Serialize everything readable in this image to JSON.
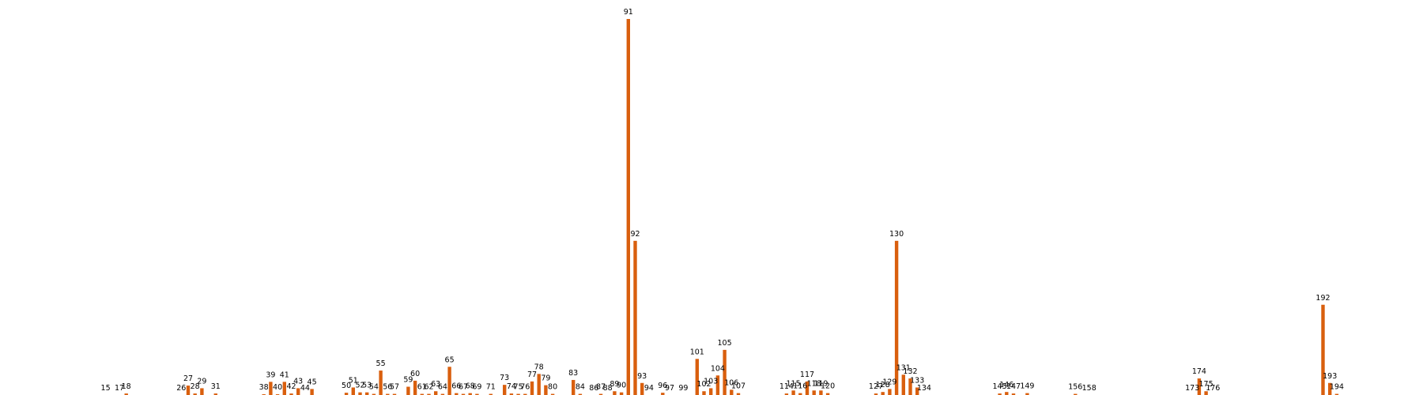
{
  "chart_data": {
    "type": "bar",
    "title": "",
    "xlabel": "",
    "ylabel": "",
    "ylim": [
      0,
      100
    ],
    "xlim": [
      0,
      200
    ],
    "grid": false,
    "bar_color": "#d95f0e",
    "points": [
      {
        "x": 15,
        "value": 0,
        "label": "15"
      },
      {
        "x": 17,
        "value": 0,
        "label": "17"
      },
      {
        "x": 18,
        "value": 0.4,
        "label": "18"
      },
      {
        "x": 26,
        "value": 0,
        "label": "26"
      },
      {
        "x": 27,
        "value": 2.5,
        "label": "27"
      },
      {
        "x": 28,
        "value": 0.4,
        "label": "28"
      },
      {
        "x": 29,
        "value": 1.8,
        "label": "29"
      },
      {
        "x": 31,
        "value": 0.4,
        "label": "31"
      },
      {
        "x": 38,
        "value": 0.2,
        "label": "38"
      },
      {
        "x": 39,
        "value": 3.5,
        "label": "39"
      },
      {
        "x": 40,
        "value": 0.2,
        "label": "40"
      },
      {
        "x": 41,
        "value": 3.5,
        "label": "41"
      },
      {
        "x": 42,
        "value": 0.4,
        "label": "42"
      },
      {
        "x": 43,
        "value": 1.8,
        "label": "43"
      },
      {
        "x": 44,
        "value": 0,
        "label": "44"
      },
      {
        "x": 45,
        "value": 1.6,
        "label": "45"
      },
      {
        "x": 50,
        "value": 0.6,
        "label": "50"
      },
      {
        "x": 51,
        "value": 2,
        "label": "51"
      },
      {
        "x": 52,
        "value": 0.7,
        "label": "52"
      },
      {
        "x": 53,
        "value": 0.7,
        "label": "53"
      },
      {
        "x": 54,
        "value": 0.3,
        "label": "54"
      },
      {
        "x": 55,
        "value": 6.5,
        "label": "55"
      },
      {
        "x": 56,
        "value": 0.3,
        "label": "56"
      },
      {
        "x": 57,
        "value": 0.3,
        "label": "57"
      },
      {
        "x": 59,
        "value": 2.2,
        "label": "59"
      },
      {
        "x": 60,
        "value": 3.8,
        "label": "60"
      },
      {
        "x": 61,
        "value": 0.3,
        "label": "61"
      },
      {
        "x": 62,
        "value": 0.3,
        "label": "62"
      },
      {
        "x": 63,
        "value": 1,
        "label": "63"
      },
      {
        "x": 64,
        "value": 0.3,
        "label": "64"
      },
      {
        "x": 65,
        "value": 7.5,
        "label": "65"
      },
      {
        "x": 66,
        "value": 0.5,
        "label": "66"
      },
      {
        "x": 67,
        "value": 0.3,
        "label": "67"
      },
      {
        "x": 68,
        "value": 0.5,
        "label": "68"
      },
      {
        "x": 69,
        "value": 0.3,
        "label": "69"
      },
      {
        "x": 71,
        "value": 0.3,
        "label": "71"
      },
      {
        "x": 73,
        "value": 2.7,
        "label": "73"
      },
      {
        "x": 74,
        "value": 0.4,
        "label": "74"
      },
      {
        "x": 75,
        "value": 0.3,
        "label": "75"
      },
      {
        "x": 76,
        "value": 0.3,
        "label": "76"
      },
      {
        "x": 77,
        "value": 3.6,
        "label": "77"
      },
      {
        "x": 78,
        "value": 5.6,
        "label": "78"
      },
      {
        "x": 79,
        "value": 2.6,
        "label": "79"
      },
      {
        "x": 80,
        "value": 0.3,
        "label": "80"
      },
      {
        "x": 83,
        "value": 4,
        "label": "83"
      },
      {
        "x": 84,
        "value": 0.3,
        "label": "84"
      },
      {
        "x": 86,
        "value": 0,
        "label": "86"
      },
      {
        "x": 87,
        "value": 0.3,
        "label": "87"
      },
      {
        "x": 88,
        "value": 0,
        "label": "88"
      },
      {
        "x": 89,
        "value": 1,
        "label": "89"
      },
      {
        "x": 90,
        "value": 0.7,
        "label": "90"
      },
      {
        "x": 91,
        "value": 100,
        "label": "91"
      },
      {
        "x": 92,
        "value": 41,
        "label": "92"
      },
      {
        "x": 93,
        "value": 3.2,
        "label": "93"
      },
      {
        "x": 94,
        "value": 0,
        "label": "94"
      },
      {
        "x": 96,
        "value": 0.6,
        "label": "96"
      },
      {
        "x": 97,
        "value": 0,
        "label": "97"
      },
      {
        "x": 99,
        "value": 0,
        "label": "99"
      },
      {
        "x": 101,
        "value": 9.6,
        "label": "101"
      },
      {
        "x": 102,
        "value": 1,
        "label": "102"
      },
      {
        "x": 103,
        "value": 1.8,
        "label": "103"
      },
      {
        "x": 104,
        "value": 5.2,
        "label": "104"
      },
      {
        "x": 105,
        "value": 12,
        "label": "105"
      },
      {
        "x": 106,
        "value": 1.4,
        "label": "106"
      },
      {
        "x": 107,
        "value": 0.5,
        "label": "107"
      },
      {
        "x": 114,
        "value": 0.4,
        "label": "114"
      },
      {
        "x": 115,
        "value": 1.2,
        "label": "115"
      },
      {
        "x": 116,
        "value": 0.5,
        "label": "116"
      },
      {
        "x": 117,
        "value": 3.6,
        "label": "117"
      },
      {
        "x": 118,
        "value": 1.2,
        "label": "118"
      },
      {
        "x": 119,
        "value": 1.2,
        "label": "119"
      },
      {
        "x": 120,
        "value": 0.5,
        "label": "120"
      },
      {
        "x": 127,
        "value": 0.4,
        "label": "127"
      },
      {
        "x": 128,
        "value": 0.8,
        "label": "128"
      },
      {
        "x": 129,
        "value": 1.6,
        "label": "129"
      },
      {
        "x": 130,
        "value": 41,
        "label": "130"
      },
      {
        "x": 131,
        "value": 5.4,
        "label": "131"
      },
      {
        "x": 132,
        "value": 4.4,
        "label": "132"
      },
      {
        "x": 133,
        "value": 2,
        "label": "133"
      },
      {
        "x": 134,
        "value": 0,
        "label": "134"
      },
      {
        "x": 145,
        "value": 0.4,
        "label": "145"
      },
      {
        "x": 146,
        "value": 0.8,
        "label": "146"
      },
      {
        "x": 147,
        "value": 0.4,
        "label": "147"
      },
      {
        "x": 149,
        "value": 0.5,
        "label": "149"
      },
      {
        "x": 156,
        "value": 0.3,
        "label": "156"
      },
      {
        "x": 158,
        "value": 0,
        "label": "158"
      },
      {
        "x": 173,
        "value": 0,
        "label": "173"
      },
      {
        "x": 174,
        "value": 4.4,
        "label": "174"
      },
      {
        "x": 175,
        "value": 1,
        "label": "175"
      },
      {
        "x": 176,
        "value": 0,
        "label": "176"
      },
      {
        "x": 192,
        "value": 24,
        "label": "192"
      },
      {
        "x": 193,
        "value": 3.2,
        "label": "193"
      },
      {
        "x": 194,
        "value": 0.3,
        "label": "194"
      }
    ]
  }
}
